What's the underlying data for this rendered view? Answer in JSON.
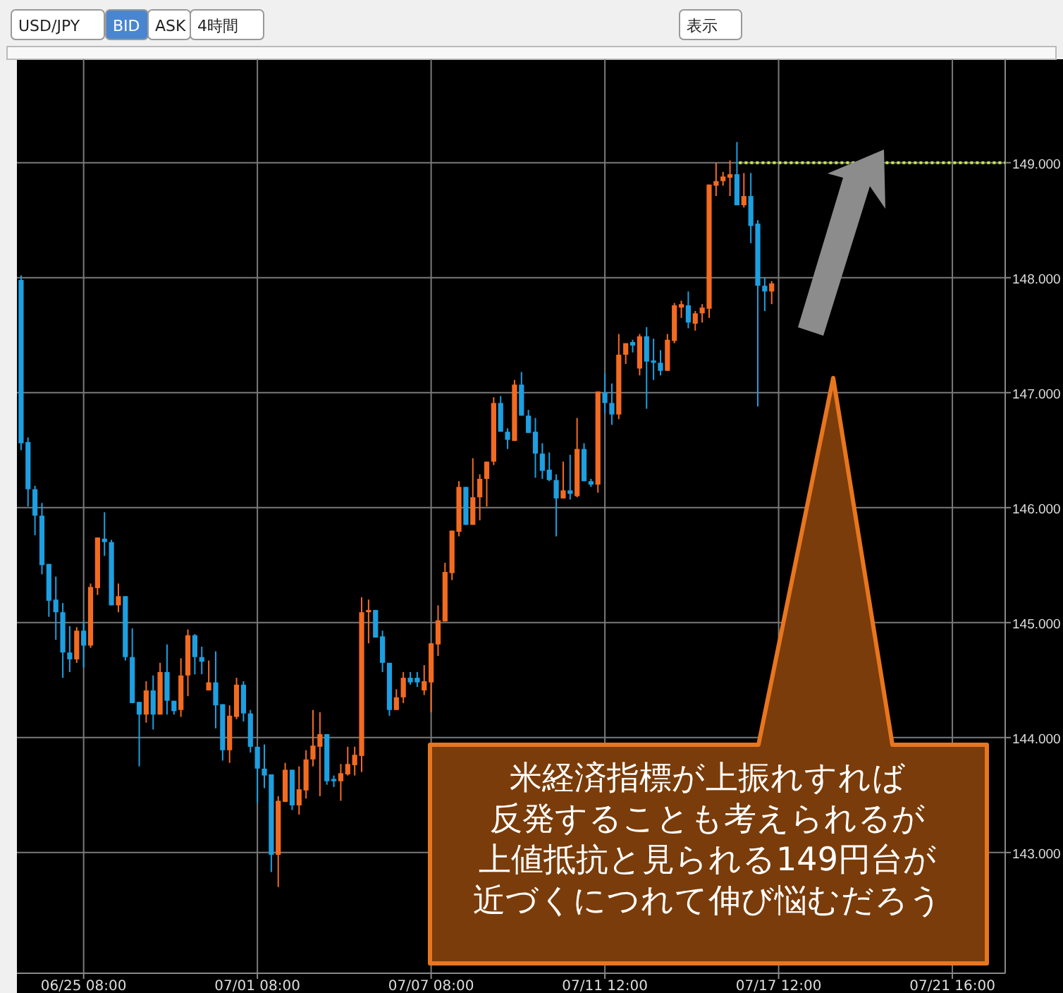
{
  "chart_data": {
    "type": "candlestick",
    "annotations": [
      "USD/JPY",
      "BID",
      "ASK",
      "4時間",
      "表示",
      "米経済指標が上振れすれば",
      "反発することも考えられるが",
      "上値抵抗と見られる149円台が",
      "近づくにつれて伸び悩むだろう"
    ],
    "categories": [
      null,
      null,
      null,
      null,
      null,
      null,
      null,
      null,
      null,
      "06/25 08:00",
      null,
      null,
      null,
      null,
      null,
      null,
      null,
      null,
      null,
      null,
      null,
      null,
      null,
      null,
      null,
      null,
      null,
      null,
      null,
      null,
      null,
      null,
      null,
      null,
      "07/01 08:00",
      null,
      null,
      null,
      null,
      null,
      null,
      null,
      null,
      null,
      null,
      null,
      null,
      null,
      null,
      null,
      null,
      null,
      null,
      null,
      null,
      null,
      null,
      null,
      null,
      "07/07 08:00",
      null,
      null,
      null,
      null,
      null,
      null,
      null,
      null,
      null,
      null,
      null,
      null,
      null,
      null,
      null,
      null,
      null,
      null,
      null,
      null,
      null,
      null,
      null,
      null,
      "07/11 12:00",
      null,
      null,
      null,
      null,
      null,
      null,
      null,
      null,
      null,
      null,
      null,
      null,
      null,
      null,
      null,
      null,
      null,
      null,
      null,
      null,
      null,
      null,
      null,
      null,
      "07/17 12:00",
      null,
      null,
      null,
      null,
      null,
      null,
      null,
      null,
      null,
      null,
      null,
      null,
      null,
      null,
      null,
      null,
      null,
      null,
      null,
      null,
      null,
      null,
      null,
      null,
      "07/21 16:00",
      null,
      null,
      null,
      null,
      null,
      null,
      null
    ],
    "ohlc": [
      [
        147.98,
        148.02,
        146.5,
        146.56
      ],
      [
        146.57,
        146.61,
        146.01,
        146.16
      ],
      [
        146.16,
        146.19,
        145.76,
        145.93
      ],
      [
        145.93,
        146.04,
        145.42,
        145.5
      ],
      [
        145.51,
        145.51,
        145.05,
        145.19
      ],
      [
        145.2,
        145.4,
        144.85,
        145.09
      ],
      [
        145.09,
        145.17,
        144.52,
        144.74
      ],
      [
        144.74,
        144.97,
        144.57,
        144.68
      ],
      [
        144.68,
        144.96,
        144.65,
        144.93
      ],
      [
        144.93,
        145.01,
        144.61,
        144.8
      ],
      [
        144.8,
        145.34,
        144.78,
        145.31
      ],
      [
        145.3,
        145.74,
        145.24,
        145.74
      ],
      [
        145.73,
        145.96,
        145.58,
        145.7
      ],
      [
        145.7,
        145.72,
        145.15,
        145.15
      ],
      [
        145.15,
        145.34,
        145.09,
        145.23
      ],
      [
        145.23,
        145.23,
        144.67,
        144.7
      ],
      [
        144.7,
        144.95,
        144.3,
        144.3
      ],
      [
        144.31,
        144.31,
        143.75,
        144.2
      ],
      [
        144.2,
        144.49,
        144.13,
        144.41
      ],
      [
        144.41,
        144.54,
        144.07,
        144.2
      ],
      [
        144.2,
        144.65,
        144.2,
        144.57
      ],
      [
        144.57,
        144.81,
        144.2,
        144.32
      ],
      [
        144.32,
        144.32,
        144.2,
        144.23
      ],
      [
        144.24,
        144.69,
        144.18,
        144.54
      ],
      [
        144.54,
        144.94,
        144.36,
        144.89
      ],
      [
        144.89,
        144.9,
        144.55,
        144.7
      ],
      [
        144.7,
        144.79,
        144.55,
        144.66
      ],
      [
        144.41,
        144.67,
        144.41,
        144.48
      ],
      [
        144.48,
        144.75,
        144.08,
        144.28
      ],
      [
        144.29,
        144.29,
        143.8,
        143.89
      ],
      [
        143.89,
        144.28,
        143.78,
        144.19
      ],
      [
        144.18,
        144.52,
        144.16,
        144.46
      ],
      [
        144.46,
        144.49,
        144.14,
        144.21
      ],
      [
        144.21,
        144.24,
        143.87,
        143.92
      ],
      [
        143.92,
        143.92,
        143.43,
        143.73
      ],
      [
        143.73,
        143.94,
        143.56,
        143.67
      ],
      [
        143.68,
        143.68,
        142.83,
        142.98
      ],
      [
        142.98,
        143.49,
        142.7,
        143.45
      ],
      [
        143.44,
        143.78,
        143.44,
        143.72
      ],
      [
        143.72,
        143.72,
        143.37,
        143.41
      ],
      [
        143.41,
        143.75,
        143.33,
        143.55
      ],
      [
        143.54,
        143.89,
        143.47,
        143.81
      ],
      [
        143.81,
        144.24,
        143.75,
        143.93
      ],
      [
        143.92,
        144.22,
        143.49,
        144.03
      ],
      [
        144.03,
        144.03,
        143.59,
        143.62
      ],
      [
        143.64,
        143.67,
        143.57,
        143.62
      ],
      [
        143.62,
        143.77,
        143.45,
        143.69
      ],
      [
        143.68,
        143.92,
        143.67,
        143.77
      ],
      [
        143.76,
        143.92,
        143.67,
        143.85
      ],
      [
        143.84,
        145.22,
        143.7,
        145.09
      ],
      [
        145.09,
        145.2,
        144.82,
        145.11
      ],
      [
        145.11,
        145.11,
        144.87,
        144.87
      ],
      [
        144.88,
        144.93,
        144.57,
        144.65
      ],
      [
        144.65,
        144.65,
        144.19,
        144.24
      ],
      [
        144.24,
        144.42,
        144.24,
        144.35
      ],
      [
        144.35,
        144.57,
        144.3,
        144.52
      ],
      [
        144.52,
        144.57,
        144.46,
        144.48
      ],
      [
        144.52,
        144.57,
        144.44,
        144.48
      ],
      [
        144.41,
        144.63,
        144.37,
        144.49
      ],
      [
        144.48,
        144.82,
        144.22,
        144.82
      ],
      [
        144.81,
        145.15,
        144.71,
        145.02
      ],
      [
        145.01,
        145.52,
        145.01,
        145.44
      ],
      [
        145.43,
        145.8,
        145.37,
        145.8
      ],
      [
        145.79,
        146.23,
        145.75,
        146.18
      ],
      [
        146.18,
        146.18,
        145.85,
        145.85
      ],
      [
        145.85,
        146.43,
        145.85,
        146.09
      ],
      [
        146.09,
        146.29,
        145.89,
        146.25
      ],
      [
        146.25,
        146.4,
        146.01,
        146.4
      ],
      [
        146.4,
        146.96,
        146.37,
        146.91
      ],
      [
        146.91,
        146.97,
        146.66,
        146.66
      ],
      [
        146.66,
        146.69,
        146.51,
        146.59
      ],
      [
        146.58,
        147.11,
        146.58,
        147.07
      ],
      [
        147.07,
        147.18,
        146.8,
        146.8
      ],
      [
        146.8,
        146.85,
        146.65,
        146.65
      ],
      [
        146.66,
        146.78,
        146.26,
        146.47
      ],
      [
        146.47,
        146.56,
        146.25,
        146.32
      ],
      [
        146.33,
        146.48,
        146.23,
        146.24
      ],
      [
        146.24,
        146.29,
        145.75,
        146.08
      ],
      [
        146.08,
        146.4,
        146.08,
        146.15
      ],
      [
        146.15,
        146.46,
        146.07,
        146.12
      ],
      [
        146.1,
        146.78,
        146.09,
        146.51
      ],
      [
        146.51,
        146.56,
        146.23,
        146.23
      ],
      [
        146.23,
        146.25,
        146.18,
        146.2
      ],
      [
        146.2,
        147.01,
        146.13,
        147.01
      ],
      [
        147.0,
        147.17,
        146.82,
        146.91
      ],
      [
        146.91,
        147.08,
        146.72,
        146.81
      ],
      [
        146.81,
        147.51,
        146.77,
        147.33
      ],
      [
        147.33,
        147.43,
        147.25,
        147.43
      ],
      [
        147.44,
        147.46,
        147.35,
        147.41
      ],
      [
        147.21,
        147.51,
        147.15,
        147.49
      ],
      [
        147.49,
        147.57,
        146.86,
        147.27
      ],
      [
        147.28,
        147.47,
        147.11,
        147.26
      ],
      [
        147.26,
        147.37,
        147.15,
        147.19
      ],
      [
        147.19,
        147.51,
        147.19,
        147.46
      ],
      [
        147.45,
        147.78,
        147.43,
        147.76
      ],
      [
        147.74,
        147.8,
        147.65,
        147.77
      ],
      [
        147.76,
        147.88,
        147.56,
        147.61
      ],
      [
        147.6,
        147.71,
        147.54,
        147.69
      ],
      [
        147.69,
        147.77,
        147.61,
        147.74
      ],
      [
        147.73,
        148.81,
        147.65,
        148.81
      ],
      [
        148.8,
        149.0,
        148.71,
        148.84
      ],
      [
        148.84,
        148.92,
        148.8,
        148.88
      ],
      [
        148.87,
        149.02,
        148.71,
        148.9
      ],
      [
        148.9,
        149.18,
        148.63,
        148.63
      ],
      [
        148.63,
        148.91,
        148.61,
        148.71
      ],
      [
        148.71,
        148.91,
        148.3,
        148.45
      ],
      [
        148.47,
        148.5,
        146.88,
        147.93
      ],
      [
        147.93,
        148.0,
        147.71,
        147.88
      ],
      [
        147.88,
        147.97,
        147.77,
        147.95
      ],
      null,
      null,
      null,
      null,
      null,
      null,
      null,
      null,
      null,
      null,
      null,
      null,
      null,
      null,
      null,
      null,
      null,
      null,
      null,
      null,
      null,
      null,
      null,
      null,
      null,
      null,
      null,
      null,
      null,
      null,
      null,
      null,
      null
    ],
    "colors": [
      "#1d9fe0",
      "#1d9fe0",
      "#1d9fe0",
      "#1d9fe0",
      "#1d9fe0",
      "#1d9fe0",
      "#1d9fe0",
      "#1d9fe0",
      "#f26b21",
      "#1d9fe0",
      "#f26b21",
      "#f26b21",
      "#1d9fe0",
      "#1d9fe0",
      "#f26b21",
      "#1d9fe0",
      "#1d9fe0",
      "#1d9fe0",
      "#f26b21",
      "#1d9fe0",
      "#f26b21",
      "#1d9fe0",
      "#1d9fe0",
      "#f26b21",
      "#f26b21",
      "#1d9fe0",
      "#1d9fe0",
      "#f26b21",
      "#1d9fe0",
      "#1d9fe0",
      "#f26b21",
      "#f26b21",
      "#1d9fe0",
      "#1d9fe0",
      "#1d9fe0",
      "#1d9fe0",
      "#1d9fe0",
      "#f26b21",
      "#f26b21",
      "#1d9fe0",
      "#f26b21",
      "#f26b21",
      "#f26b21",
      "#f26b21",
      "#1d9fe0",
      "#1d9fe0",
      "#f26b21",
      "#f26b21",
      "#f26b21",
      "#f26b21",
      "#f26b21",
      "#1d9fe0",
      "#1d9fe0",
      "#1d9fe0",
      "#f26b21",
      "#f26b21",
      "#1d9fe0",
      "#1d9fe0",
      "#f26b21",
      "#f26b21",
      "#f26b21",
      "#f26b21",
      "#f26b21",
      "#f26b21",
      "#1d9fe0",
      "#f26b21",
      "#f26b21",
      "#f26b21",
      "#f26b21",
      "#1d9fe0",
      "#1d9fe0",
      "#f26b21",
      "#1d9fe0",
      "#1d9fe0",
      "#1d9fe0",
      "#1d9fe0",
      "#1d9fe0",
      "#1d9fe0",
      "#f26b21",
      "#1d9fe0",
      "#f26b21",
      "#1d9fe0",
      "#1d9fe0",
      "#f26b21",
      "#1d9fe0",
      "#1d9fe0",
      "#f26b21",
      "#f26b21",
      "#1d9fe0",
      "#f26b21",
      "#1d9fe0",
      "#1d9fe0",
      "#1d9fe0",
      "#f26b21",
      "#f26b21",
      "#f26b21",
      "#1d9fe0",
      "#f26b21",
      "#f26b21",
      "#f26b21",
      "#f26b21",
      "#f26b21",
      "#f26b21",
      "#1d9fe0",
      "#f26b21",
      "#1d9fe0",
      "#1d9fe0",
      "#1d9fe0",
      "#f26b21",
      null,
      null,
      null,
      null,
      null,
      null,
      null,
      null,
      null,
      null,
      null,
      null,
      null,
      null,
      null,
      null,
      null,
      null,
      null,
      null,
      null,
      null,
      null,
      null,
      null,
      null,
      null,
      null,
      null,
      null,
      null,
      null,
      null
    ],
    "ylim": [
      141.95,
      149.9
    ],
    "yticks": [
      {
        "value": 143,
        "label": "143.000"
      },
      {
        "value": 144,
        "label": "144.000"
      },
      {
        "value": 145,
        "label": "145.000"
      },
      {
        "value": 146,
        "label": "146.000"
      },
      {
        "value": 147,
        "label": "147.000"
      },
      {
        "value": 148,
        "label": "148.000"
      },
      {
        "value": 149,
        "label": "149.000"
      }
    ],
    "ref_lines": [
      {
        "axis": "y",
        "value": 149,
        "color": "#c8e650",
        "line_style": "dotted"
      }
    ],
    "grid": true
  }
}
